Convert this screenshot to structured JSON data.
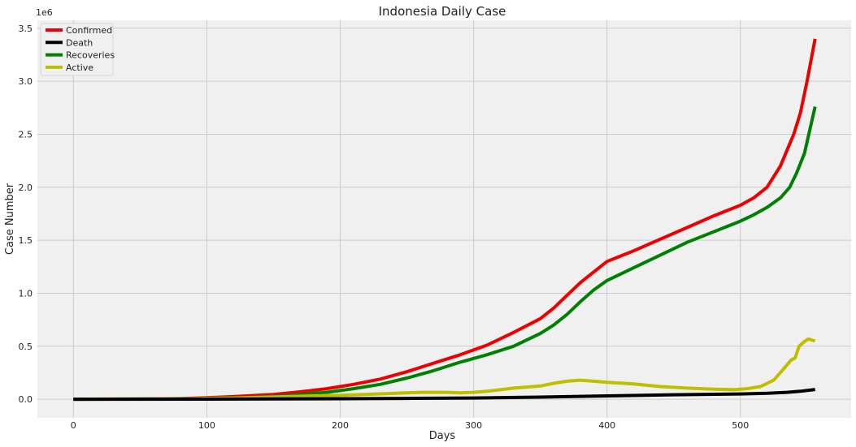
{
  "chart_data": {
    "type": "line",
    "title": "Indonesia Daily Case",
    "xlabel": "Days",
    "ylabel": "Case Number",
    "y_scale_label": "1e6",
    "xlim": [
      -27,
      583
    ],
    "ylim": [
      -175000,
      3575000
    ],
    "x_ticks": [
      0,
      100,
      200,
      300,
      400,
      500
    ],
    "x_tick_labels": [
      "0",
      "100",
      "200",
      "300",
      "400",
      "500"
    ],
    "y_ticks": [
      0,
      500000,
      1000000,
      1500000,
      2000000,
      2500000,
      3000000,
      3500000
    ],
    "y_tick_labels": [
      "0.0",
      "0.5",
      "1.0",
      "1.5",
      "2.0",
      "2.5",
      "3.0",
      "3.5"
    ],
    "grid": true,
    "legend_position": "top-left",
    "series": [
      {
        "name": "Confirmed",
        "color": "#ee0000",
        "points": [
          [
            0,
            2
          ],
          [
            50,
            1500
          ],
          [
            80,
            7000
          ],
          [
            100,
            15000
          ],
          [
            120,
            25000
          ],
          [
            150,
            45000
          ],
          [
            170,
            70000
          ],
          [
            190,
            100000
          ],
          [
            210,
            140000
          ],
          [
            230,
            190000
          ],
          [
            250,
            260000
          ],
          [
            270,
            340000
          ],
          [
            290,
            420000
          ],
          [
            310,
            510000
          ],
          [
            330,
            630000
          ],
          [
            350,
            760000
          ],
          [
            360,
            860000
          ],
          [
            370,
            980000
          ],
          [
            380,
            1100000
          ],
          [
            390,
            1200000
          ],
          [
            400,
            1300000
          ],
          [
            420,
            1400000
          ],
          [
            440,
            1510000
          ],
          [
            460,
            1620000
          ],
          [
            480,
            1730000
          ],
          [
            500,
            1830000
          ],
          [
            510,
            1900000
          ],
          [
            520,
            2000000
          ],
          [
            530,
            2200000
          ],
          [
            540,
            2500000
          ],
          [
            545,
            2700000
          ],
          [
            550,
            3000000
          ],
          [
            556,
            3400000
          ]
        ]
      },
      {
        "name": "Death",
        "color": "#000000",
        "points": [
          [
            0,
            0
          ],
          [
            100,
            800
          ],
          [
            150,
            2500
          ],
          [
            200,
            5000
          ],
          [
            250,
            8000
          ],
          [
            300,
            12000
          ],
          [
            350,
            20000
          ],
          [
            400,
            32000
          ],
          [
            450,
            42000
          ],
          [
            500,
            50000
          ],
          [
            520,
            56000
          ],
          [
            535,
            65000
          ],
          [
            545,
            75000
          ],
          [
            556,
            92000
          ]
        ]
      },
      {
        "name": "Recoveries",
        "color": "#008000",
        "points": [
          [
            0,
            0
          ],
          [
            80,
            2000
          ],
          [
            100,
            5000
          ],
          [
            130,
            15000
          ],
          [
            160,
            35000
          ],
          [
            190,
            65000
          ],
          [
            210,
            100000
          ],
          [
            230,
            140000
          ],
          [
            250,
            200000
          ],
          [
            270,
            270000
          ],
          [
            290,
            350000
          ],
          [
            310,
            420000
          ],
          [
            330,
            500000
          ],
          [
            350,
            620000
          ],
          [
            360,
            700000
          ],
          [
            370,
            800000
          ],
          [
            380,
            920000
          ],
          [
            390,
            1030000
          ],
          [
            400,
            1120000
          ],
          [
            420,
            1240000
          ],
          [
            440,
            1360000
          ],
          [
            460,
            1480000
          ],
          [
            480,
            1580000
          ],
          [
            500,
            1680000
          ],
          [
            510,
            1740000
          ],
          [
            520,
            1810000
          ],
          [
            530,
            1900000
          ],
          [
            537,
            2000000
          ],
          [
            542,
            2130000
          ],
          [
            548,
            2320000
          ],
          [
            556,
            2760000
          ]
        ]
      },
      {
        "name": "Active",
        "color": "#bfbf00",
        "points": [
          [
            0,
            0
          ],
          [
            80,
            5000
          ],
          [
            120,
            12000
          ],
          [
            160,
            25000
          ],
          [
            200,
            38000
          ],
          [
            240,
            55000
          ],
          [
            260,
            65000
          ],
          [
            280,
            65000
          ],
          [
            290,
            60000
          ],
          [
            300,
            65000
          ],
          [
            310,
            75000
          ],
          [
            320,
            90000
          ],
          [
            330,
            105000
          ],
          [
            340,
            115000
          ],
          [
            350,
            125000
          ],
          [
            360,
            150000
          ],
          [
            370,
            170000
          ],
          [
            380,
            180000
          ],
          [
            390,
            170000
          ],
          [
            400,
            160000
          ],
          [
            420,
            145000
          ],
          [
            440,
            120000
          ],
          [
            460,
            105000
          ],
          [
            480,
            95000
          ],
          [
            495,
            90000
          ],
          [
            505,
            100000
          ],
          [
            515,
            120000
          ],
          [
            525,
            180000
          ],
          [
            532,
            280000
          ],
          [
            538,
            370000
          ],
          [
            541,
            390000
          ],
          [
            544,
            500000
          ],
          [
            548,
            545000
          ],
          [
            551,
            570000
          ],
          [
            553,
            560000
          ],
          [
            556,
            550000
          ]
        ]
      }
    ]
  }
}
